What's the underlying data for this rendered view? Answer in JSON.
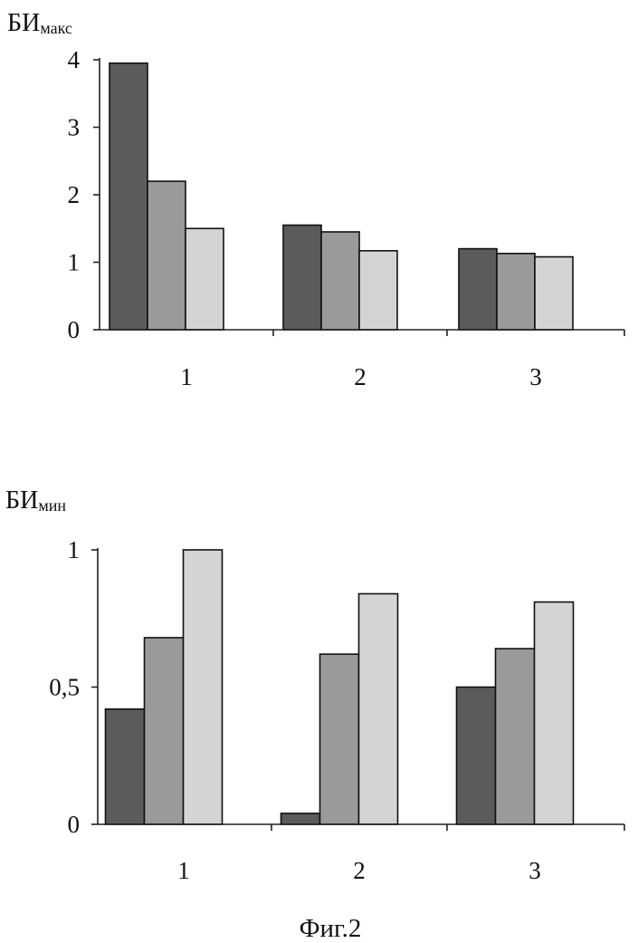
{
  "chart_data": [
    {
      "type": "bar",
      "ylabel": "БИ",
      "ylabel_sub": "макс",
      "categories": [
        "1",
        "2",
        "3"
      ],
      "y_ticks": [
        "0",
        "1",
        "2",
        "3",
        "4"
      ],
      "ylim": [
        0,
        4
      ],
      "grid": false,
      "series": [
        {
          "values": [
            3.95,
            1.55,
            1.2
          ]
        },
        {
          "values": [
            2.2,
            1.45,
            1.13
          ]
        },
        {
          "values": [
            1.5,
            1.17,
            1.08
          ]
        }
      ],
      "colors": [
        "#5b5b5b",
        "#9a9a9a",
        "#d4d4d4"
      ]
    },
    {
      "type": "bar",
      "ylabel": "БИ",
      "ylabel_sub": "мин",
      "categories": [
        "1",
        "2",
        "3"
      ],
      "y_ticks": [
        "0",
        "0,5",
        "1"
      ],
      "ylim": [
        0,
        1
      ],
      "grid": false,
      "series": [
        {
          "values": [
            0.42,
            0.04,
            0.5
          ]
        },
        {
          "values": [
            0.68,
            0.62,
            0.64
          ]
        },
        {
          "values": [
            1.0,
            0.84,
            0.81
          ]
        }
      ],
      "colors": [
        "#5b5b5b",
        "#9a9a9a",
        "#d4d4d4"
      ]
    }
  ],
  "caption": "Фиг.2"
}
